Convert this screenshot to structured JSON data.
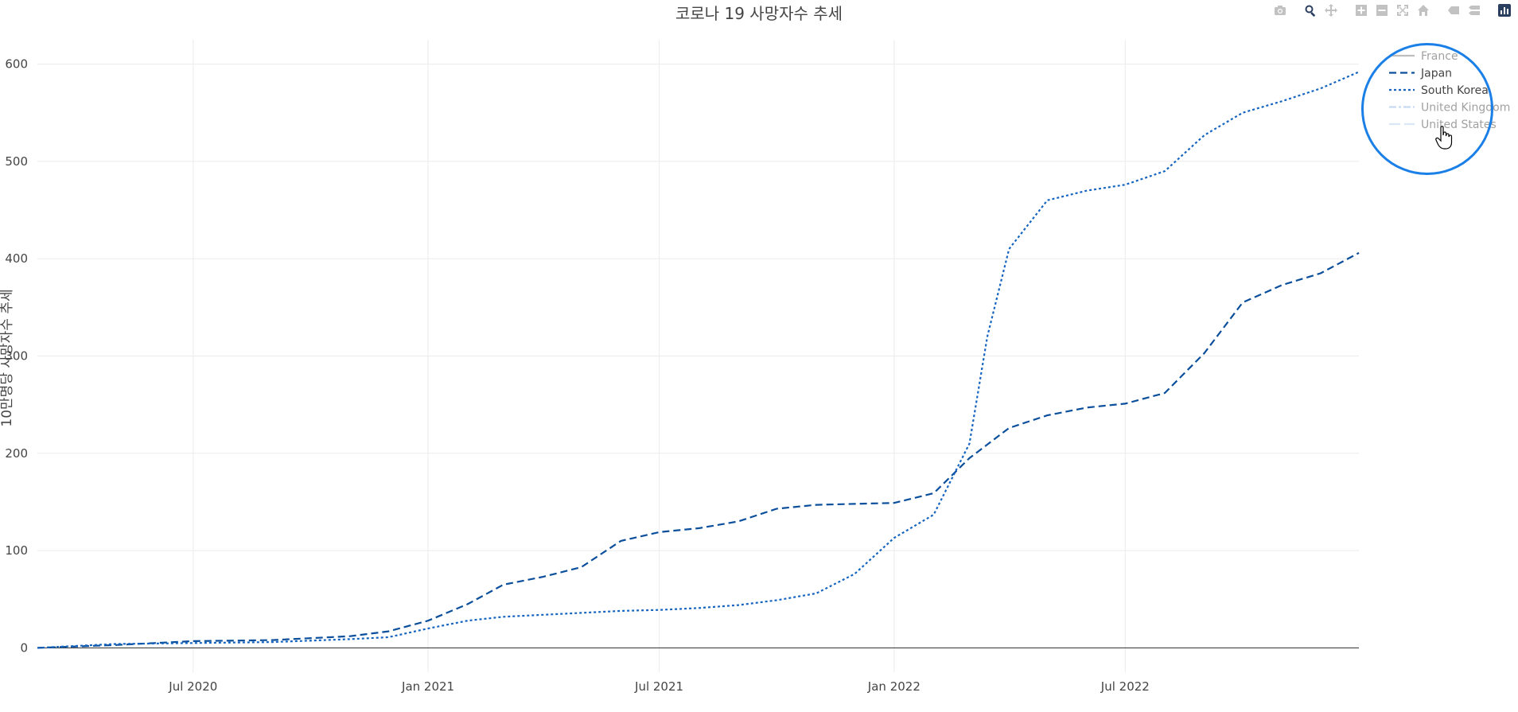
{
  "chart_data": {
    "type": "line",
    "title": "코로나 19 사망자수 추세",
    "xlabel": "",
    "ylabel": "10만명당 사망자수 추세",
    "x_range": [
      "2020-03-01",
      "2022-12-31"
    ],
    "ylim": [
      -25,
      625
    ],
    "x_ticks": [
      {
        "date": "2020-07-01",
        "label": "Jul 2020"
      },
      {
        "date": "2021-01-01",
        "label": "Jan 2021"
      },
      {
        "date": "2021-07-01",
        "label": "Jul 2021"
      },
      {
        "date": "2022-01-01",
        "label": "Jan 2022"
      },
      {
        "date": "2022-07-01",
        "label": "Jul 2022"
      }
    ],
    "y_ticks": [
      0,
      100,
      200,
      300,
      400,
      500,
      600
    ],
    "grid": true,
    "legend_position": "top-right",
    "series": [
      {
        "name": "France",
        "visible": false,
        "color": "#7f7f7f",
        "dash": "solid",
        "points": []
      },
      {
        "name": "Japan",
        "visible": true,
        "color": "#0b4f9c",
        "dash": "dash",
        "points": [
          [
            "2020-03-01",
            0
          ],
          [
            "2020-05-01",
            3
          ],
          [
            "2020-07-01",
            7
          ],
          [
            "2020-09-01",
            8
          ],
          [
            "2020-11-01",
            12
          ],
          [
            "2020-12-01",
            17
          ],
          [
            "2021-01-01",
            28
          ],
          [
            "2021-02-01",
            45
          ],
          [
            "2021-03-01",
            65
          ],
          [
            "2021-04-01",
            73
          ],
          [
            "2021-05-01",
            83
          ],
          [
            "2021-06-01",
            110
          ],
          [
            "2021-07-01",
            119
          ],
          [
            "2021-08-01",
            123
          ],
          [
            "2021-09-01",
            130
          ],
          [
            "2021-10-01",
            143
          ],
          [
            "2021-11-01",
            147
          ],
          [
            "2021-12-01",
            148
          ],
          [
            "2022-01-01",
            149
          ],
          [
            "2022-02-01",
            159
          ],
          [
            "2022-03-01",
            195
          ],
          [
            "2022-04-01",
            226
          ],
          [
            "2022-05-01",
            239
          ],
          [
            "2022-06-01",
            247
          ],
          [
            "2022-07-01",
            251
          ],
          [
            "2022-08-01",
            262
          ],
          [
            "2022-09-01",
            303
          ],
          [
            "2022-10-01",
            355
          ],
          [
            "2022-11-01",
            373
          ],
          [
            "2022-12-01",
            385
          ],
          [
            "2022-12-31",
            406
          ]
        ]
      },
      {
        "name": "South Korea",
        "visible": true,
        "color": "#1565c0",
        "dash": "dot",
        "points": [
          [
            "2020-03-01",
            0
          ],
          [
            "2020-05-01",
            4
          ],
          [
            "2020-07-01",
            5
          ],
          [
            "2020-09-01",
            6
          ],
          [
            "2020-11-01",
            9
          ],
          [
            "2020-12-01",
            11
          ],
          [
            "2021-01-01",
            20
          ],
          [
            "2021-02-01",
            28
          ],
          [
            "2021-03-01",
            32
          ],
          [
            "2021-04-01",
            34
          ],
          [
            "2021-05-01",
            36
          ],
          [
            "2021-06-01",
            38
          ],
          [
            "2021-07-01",
            39
          ],
          [
            "2021-08-01",
            41
          ],
          [
            "2021-09-01",
            44
          ],
          [
            "2021-10-01",
            49
          ],
          [
            "2021-11-01",
            56
          ],
          [
            "2021-12-01",
            76
          ],
          [
            "2022-01-01",
            113
          ],
          [
            "2022-02-01",
            137
          ],
          [
            "2022-03-01",
            210
          ],
          [
            "2022-03-15",
            320
          ],
          [
            "2022-04-01",
            410
          ],
          [
            "2022-05-01",
            460
          ],
          [
            "2022-06-01",
            470
          ],
          [
            "2022-07-01",
            476
          ],
          [
            "2022-08-01",
            490
          ],
          [
            "2022-09-01",
            527
          ],
          [
            "2022-10-01",
            550
          ],
          [
            "2022-11-01",
            562
          ],
          [
            "2022-12-01",
            575
          ],
          [
            "2022-12-31",
            592
          ]
        ]
      },
      {
        "name": "United Kingdom",
        "visible": false,
        "color": "#8fb8e6",
        "dash": "dashdot",
        "points": []
      },
      {
        "name": "United States",
        "visible": false,
        "color": "#b6d0ee",
        "dash": "longdash",
        "points": []
      }
    ]
  },
  "toolbar": {
    "icons": [
      "camera-icon",
      "zoom-icon",
      "pan-icon",
      "zoom-in-icon",
      "zoom-out-icon",
      "autoscale-icon",
      "home-icon",
      "spike-lines-icon",
      "compare-data-icon",
      "plotly-logo-icon"
    ]
  },
  "legend_hint": {
    "highlight_color": "#1a7fe6"
  }
}
